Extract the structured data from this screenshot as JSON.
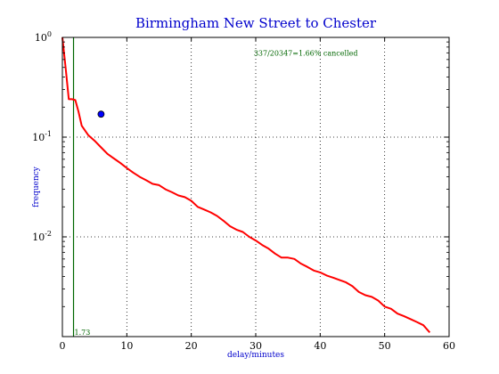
{
  "chart_data": {
    "type": "line",
    "title": "Birmingham New Street to Chester",
    "xlabel": "delay/minutes",
    "ylabel": "frequency",
    "xlim": [
      0,
      60
    ],
    "ylim": [
      0.001,
      1
    ],
    "yscale": "log",
    "x_ticks": [
      "0",
      "10",
      "20",
      "30",
      "40",
      "50",
      "60"
    ],
    "y_ticks": [
      {
        "base": "10",
        "exp": "0"
      },
      {
        "base": "10",
        "exp": "-1"
      },
      {
        "base": "10",
        "exp": "-2"
      }
    ],
    "grid": true,
    "series": [
      {
        "color": "#ff0000",
        "x": [
          0,
          0.5,
          1,
          1.5,
          2,
          2.5,
          3,
          4,
          5,
          6,
          7,
          8,
          9,
          10,
          11,
          12,
          13,
          14,
          15,
          16,
          17,
          18,
          19,
          20,
          21,
          22,
          23,
          24,
          25,
          26,
          27,
          28,
          29,
          30,
          31,
          32,
          33,
          34,
          35,
          36,
          37,
          38,
          39,
          40,
          41,
          42,
          43,
          44,
          45,
          46,
          47,
          48,
          49,
          50,
          51,
          52,
          53,
          54,
          55,
          56,
          57
        ],
        "y": [
          1.0,
          0.5,
          0.24,
          0.24,
          0.235,
          0.18,
          0.13,
          0.105,
          0.092,
          0.079,
          0.068,
          0.061,
          0.055,
          0.049,
          0.044,
          0.04,
          0.037,
          0.034,
          0.033,
          0.03,
          0.028,
          0.026,
          0.025,
          0.023,
          0.02,
          0.0188,
          0.0176,
          0.0162,
          0.0145,
          0.0128,
          0.0118,
          0.0112,
          0.01,
          0.0092,
          0.0083,
          0.0076,
          0.0068,
          0.0062,
          0.0062,
          0.006,
          0.0054,
          0.005,
          0.0046,
          0.0044,
          0.0041,
          0.0039,
          0.0037,
          0.0035,
          0.0032,
          0.0028,
          0.0026,
          0.0025,
          0.0023,
          0.002,
          0.0019,
          0.0017,
          0.0016,
          0.0015,
          0.0014,
          0.0013,
          0.0011
        ]
      }
    ],
    "marker": {
      "x": 6,
      "y": 0.17,
      "color": "#0000ff"
    },
    "vline": {
      "x": 1.73,
      "label": "1.73",
      "color": "#006600"
    },
    "annotation": {
      "text": "337/20347=1.66% cancelled",
      "x": 35,
      "y": 0.7,
      "color": "#006600"
    }
  }
}
